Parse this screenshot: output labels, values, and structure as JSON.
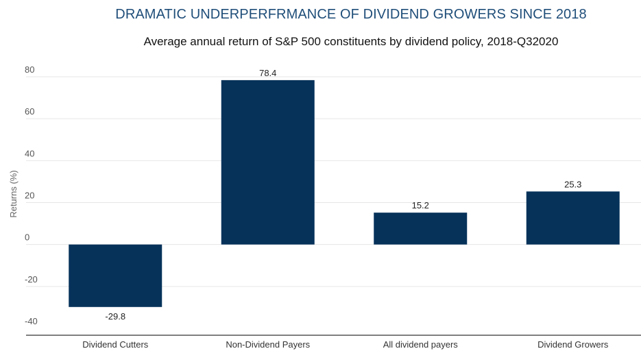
{
  "chart_data": {
    "type": "bar",
    "title": "DRAMATIC UNDERPERFRMANCE OF DIVIDEND GROWERS SINCE 2018",
    "subtitle": "Average annual return of S&P 500 constituents by dividend policy, 2018-Q32020",
    "xlabel": "",
    "ylabel": "Returns (%)",
    "categories": [
      "Dividend Cutters",
      "Non-Dividend Payers",
      "All dividend payers",
      "Dividend Growers"
    ],
    "values": [
      -29.8,
      78.4,
      15.2,
      25.3
    ],
    "data_labels": [
      "-29.8",
      "78.4",
      "15.2",
      "25.3"
    ],
    "ylim": [
      -40,
      80
    ],
    "yticks": [
      80,
      60,
      40,
      20,
      0,
      -20,
      -40
    ],
    "ytick_labels": [
      "80",
      "60",
      "40",
      "20",
      "0",
      "-20",
      "-40"
    ],
    "grid": true,
    "bar_color": "#06325a",
    "title_color": "#1f4e79"
  }
}
